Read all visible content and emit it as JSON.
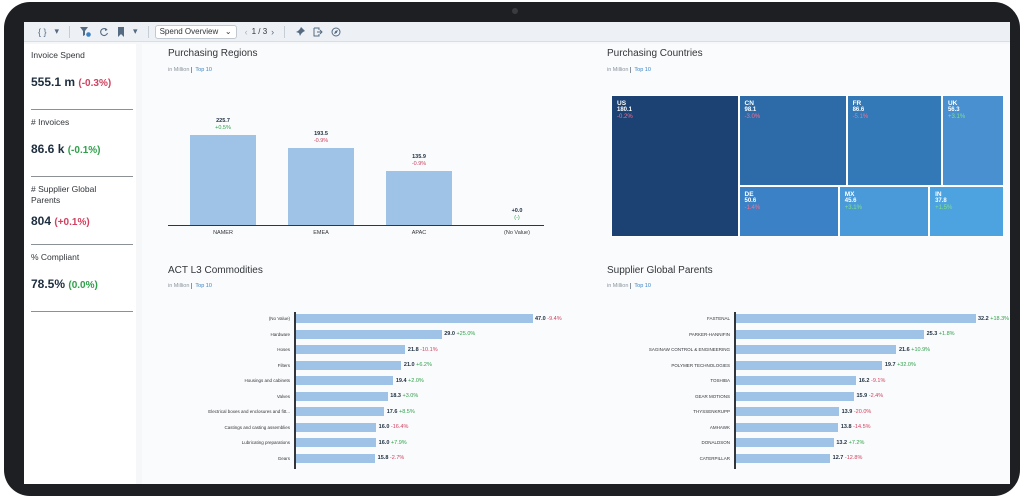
{
  "toolbar": {
    "code_icon": "{ }",
    "story_select": "Spend Overview",
    "page_indicator": "1 / 3"
  },
  "kpis": [
    {
      "title": "Invoice Spend",
      "value": "555.1 m",
      "delta": "(-0.3%)",
      "trend": "neg"
    },
    {
      "title": "# Invoices",
      "value": "86.6 k",
      "delta": "(-0.1%)",
      "trend": "pos"
    },
    {
      "title": "# Supplier Global Parents",
      "value": "804",
      "delta": "(+0.1%)",
      "trend": "neg"
    },
    {
      "title": "% Compliant",
      "value": "78.5%",
      "delta": "(0.0%)",
      "trend": "pos"
    }
  ],
  "regions": {
    "title": "Purchasing Regions",
    "unit": "in Million",
    "filter": "Top 10",
    "chart_data": {
      "type": "bar",
      "categories": [
        "NAMER",
        "EMEA",
        "APAC",
        "(No Value)"
      ],
      "values": [
        225.7,
        193.5,
        135.9,
        0.0
      ],
      "value_labels": [
        "225.7",
        "193.5",
        "135.9",
        "+0.0"
      ],
      "deltas": [
        "+0.5%",
        "-0.9%",
        "-0.9%",
        "(-)"
      ],
      "delta_trend": [
        "pos",
        "neg",
        "neg",
        "pos"
      ],
      "ylim": [
        0,
        250
      ]
    }
  },
  "countries": {
    "title": "Purchasing Countries",
    "unit": "in Million",
    "filter": "Top 10",
    "chart_data": {
      "type": "heatmap",
      "cells": [
        {
          "name": "US",
          "value": 180.1,
          "value_label": "180.1",
          "delta": "-0.2%",
          "trend": "neg",
          "color": "#1c4273"
        },
        {
          "name": "CN",
          "value": 98.1,
          "value_label": "98.1",
          "delta": "-3.0%",
          "trend": "neg",
          "color": "#2c6ba8"
        },
        {
          "name": "FR",
          "value": 86.6,
          "value_label": "86.6",
          "delta": "-5.1%",
          "trend": "neg",
          "color": "#3378b7"
        },
        {
          "name": "UK",
          "value": 56.3,
          "value_label": "56.3",
          "delta": "+3.1%",
          "trend": "pos",
          "color": "#4890cf"
        },
        {
          "name": "DE",
          "value": 50.6,
          "value_label": "50.6",
          "delta": "-1.4%",
          "trend": "neg",
          "color": "#3a82c5"
        },
        {
          "name": "MX",
          "value": 45.6,
          "value_label": "45.6",
          "delta": "+3.1%",
          "trend": "pos",
          "color": "#4a9ad9"
        },
        {
          "name": "IN",
          "value": 37.8,
          "value_label": "37.8",
          "delta": "+1.5%",
          "trend": "pos",
          "color": "#4da2e0"
        }
      ]
    }
  },
  "commodities": {
    "title": "ACT L3 Commodities",
    "unit": "in Million",
    "filter": "Top 10",
    "chart_data": {
      "type": "bar",
      "categories": [
        "(No Value)",
        "Hardware",
        "Hoses",
        "Filters",
        "Housings and cabinets",
        "Valves",
        "Electrical boxes and enclosures and fitt...",
        "Castings and casting assemblies",
        "Lubricating preparations",
        "Gears"
      ],
      "values": [
        47.0,
        29.0,
        21.8,
        21.0,
        19.4,
        18.3,
        17.6,
        16.0,
        16.0,
        15.8
      ],
      "value_labels": [
        "47.0",
        "29.0",
        "21.8",
        "21.0",
        "19.4",
        "18.3",
        "17.6",
        "16.0",
        "16.0",
        "15.8"
      ],
      "deltas": [
        "-9.4%",
        "+25.0%",
        "-10.1%",
        "+6.2%",
        "+2.0%",
        "+3.0%",
        "+8.5%",
        "-16.4%",
        "+7.9%",
        "-2.7%"
      ],
      "delta_trend": [
        "neg",
        "pos",
        "neg",
        "pos",
        "pos",
        "pos",
        "pos",
        "neg",
        "pos",
        "neg"
      ],
      "xlim": [
        0,
        47
      ]
    }
  },
  "suppliers": {
    "title": "Supplier Global Parents",
    "unit": "in Million",
    "filter": "Top 10",
    "chart_data": {
      "type": "bar",
      "categories": [
        "FASTENAL",
        "PARKER-HANNIFIN",
        "SAGINAW CONTROL & ENGINEERING",
        "POLYMER TECHNOLOGIES",
        "TOSHIBA",
        "GEAR MOTIONS",
        "THYSSENKRUPP",
        "AMHAWK",
        "DONALDSON",
        "CATERPILLAR"
      ],
      "values": [
        32.2,
        25.3,
        21.6,
        19.7,
        16.2,
        15.9,
        13.9,
        13.8,
        13.2,
        12.7
      ],
      "value_labels": [
        "32.2",
        "25.3",
        "21.6",
        "19.7",
        "16.2",
        "15.9",
        "13.9",
        "13.8",
        "13.2",
        "12.7"
      ],
      "deltas": [
        "+18.3%",
        "+1.8%",
        "+10.9%",
        "+32.0%",
        "-9.1%",
        "-2.4%",
        "-20.0%",
        "-14.5%",
        "+7.2%",
        "-12.8%"
      ],
      "delta_trend": [
        "pos",
        "pos",
        "pos",
        "pos",
        "neg",
        "neg",
        "neg",
        "neg",
        "pos",
        "neg"
      ],
      "xlim": [
        0,
        32.2
      ]
    }
  }
}
